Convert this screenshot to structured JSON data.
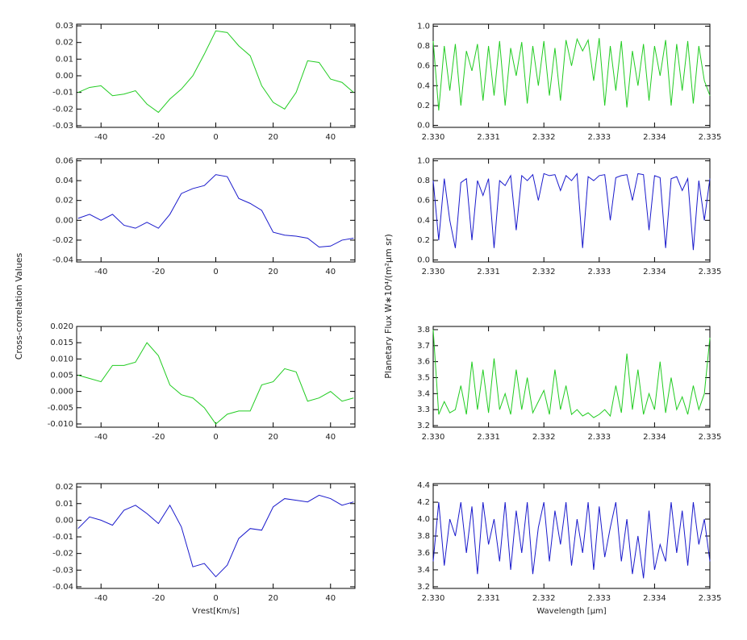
{
  "left_ylabel": "Cross-correlation Values",
  "right_ylabel": "Planetary  Flux  W∗10⁴/(m²μm sr)",
  "chart_data": [
    {
      "type": "line",
      "color": "#22cc22",
      "x": [
        -48,
        -44,
        -40,
        -36,
        -32,
        -28,
        -24,
        -20,
        -16,
        -12,
        -8,
        -4,
        0,
        4,
        8,
        12,
        16,
        20,
        24,
        28,
        32,
        36,
        40,
        44,
        48
      ],
      "values": [
        -0.01,
        -0.007,
        -0.006,
        -0.012,
        -0.011,
        -0.009,
        -0.017,
        -0.022,
        -0.014,
        -0.008,
        0.0,
        0.013,
        0.027,
        0.026,
        0.018,
        0.012,
        -0.006,
        -0.016,
        -0.02,
        -0.01,
        0.009,
        0.008,
        -0.002,
        -0.004,
        -0.01
      ],
      "xlim": [
        -48.5,
        48.5
      ],
      "xticks": [
        -40,
        -20,
        0,
        20,
        40
      ],
      "ylim": [
        -0.031,
        0.031
      ],
      "yticks": [
        {
          "value": -0.03,
          "label": "-0.03"
        },
        {
          "value": -0.02,
          "label": "-0.02"
        },
        {
          "value": -0.01,
          "label": "-0.01"
        },
        {
          "value": 0,
          "label": "0.00"
        },
        {
          "value": 0.01,
          "label": "0.01"
        },
        {
          "value": 0.02,
          "label": "0.02"
        },
        {
          "value": 0.03,
          "label": "0.03"
        }
      ]
    },
    {
      "type": "line",
      "color": "#22cc22",
      "x": [
        2.33,
        2.3301,
        2.3302,
        2.3303,
        2.3304,
        2.3305,
        2.3306,
        2.3307,
        2.3308,
        2.3309,
        2.331,
        2.3311,
        2.3312,
        2.3313,
        2.3314,
        2.3315,
        2.3316,
        2.3317,
        2.3318,
        2.3319,
        2.332,
        2.3321,
        2.3322,
        2.3323,
        2.3324,
        2.3325,
        2.3326,
        2.3327,
        2.3328,
        2.3329,
        2.333,
        2.3331,
        2.3332,
        2.3333,
        2.3334,
        2.3335,
        2.3336,
        2.3337,
        2.3338,
        2.3339,
        2.334,
        2.3341,
        2.3342,
        2.3343,
        2.3344,
        2.3345,
        2.3346,
        2.3347,
        2.3348,
        2.3349,
        2.335
      ],
      "values": [
        0.85,
        0.15,
        0.8,
        0.35,
        0.82,
        0.2,
        0.75,
        0.55,
        0.82,
        0.25,
        0.8,
        0.3,
        0.85,
        0.2,
        0.78,
        0.5,
        0.84,
        0.22,
        0.8,
        0.4,
        0.85,
        0.3,
        0.78,
        0.25,
        0.86,
        0.6,
        0.87,
        0.75,
        0.86,
        0.45,
        0.88,
        0.2,
        0.8,
        0.35,
        0.85,
        0.18,
        0.75,
        0.4,
        0.82,
        0.25,
        0.8,
        0.5,
        0.86,
        0.2,
        0.82,
        0.35,
        0.85,
        0.22,
        0.8,
        0.45,
        0.3
      ],
      "xlim": [
        2.33,
        2.335
      ],
      "xticks": [
        {
          "value": 2.33,
          "label": "2.330"
        },
        {
          "value": 2.331,
          "label": "2.331"
        },
        {
          "value": 2.332,
          "label": "2.332"
        },
        {
          "value": 2.333,
          "label": "2.333"
        },
        {
          "value": 2.334,
          "label": "2.334"
        },
        {
          "value": 2.335,
          "label": "2.335"
        }
      ],
      "ylim": [
        -0.02,
        1.02
      ],
      "yticks": [
        {
          "value": 0,
          "label": "0.0"
        },
        {
          "value": 0.2,
          "label": "0.2"
        },
        {
          "value": 0.4,
          "label": "0.4"
        },
        {
          "value": 0.6,
          "label": "0.6"
        },
        {
          "value": 0.8,
          "label": "0.8"
        },
        {
          "value": 1,
          "label": "1.0"
        }
      ]
    },
    {
      "type": "line",
      "color": "#1a1acc",
      "x": [
        -48,
        -44,
        -40,
        -36,
        -32,
        -28,
        -24,
        -20,
        -16,
        -12,
        -8,
        -4,
        0,
        4,
        8,
        12,
        16,
        20,
        24,
        28,
        32,
        36,
        40,
        44,
        48
      ],
      "values": [
        0.002,
        0.006,
        0.0,
        0.006,
        -0.005,
        -0.008,
        -0.002,
        -0.008,
        0.006,
        0.027,
        0.032,
        0.035,
        0.046,
        0.044,
        0.022,
        0.017,
        0.01,
        -0.012,
        -0.015,
        -0.016,
        -0.018,
        -0.027,
        -0.026,
        -0.02,
        -0.018
      ],
      "xlim": [
        -48.5,
        48.5
      ],
      "xticks": [
        -40,
        -20,
        0,
        20,
        40
      ],
      "ylim": [
        -0.042,
        0.062
      ],
      "yticks": [
        {
          "value": -0.04,
          "label": "-0.04"
        },
        {
          "value": -0.02,
          "label": "-0.02"
        },
        {
          "value": 0,
          "label": "0.00"
        },
        {
          "value": 0.02,
          "label": "0.02"
        },
        {
          "value": 0.04,
          "label": "0.04"
        },
        {
          "value": 0.06,
          "label": "0.06"
        }
      ]
    },
    {
      "type": "line",
      "color": "#1a1acc",
      "x": [
        2.33,
        2.3301,
        2.3302,
        2.3303,
        2.3304,
        2.3305,
        2.3306,
        2.3307,
        2.3308,
        2.3309,
        2.331,
        2.3311,
        2.3312,
        2.3313,
        2.3314,
        2.3315,
        2.3316,
        2.3317,
        2.3318,
        2.3319,
        2.332,
        2.3321,
        2.3322,
        2.3323,
        2.3324,
        2.3325,
        2.3326,
        2.3327,
        2.3328,
        2.3329,
        2.333,
        2.3331,
        2.3332,
        2.3333,
        2.3334,
        2.3335,
        2.3336,
        2.3337,
        2.3338,
        2.3339,
        2.334,
        2.3341,
        2.3342,
        2.3343,
        2.3344,
        2.3345,
        2.3346,
        2.3347,
        2.3348,
        2.3349,
        2.335
      ],
      "values": [
        0.8,
        0.2,
        0.82,
        0.4,
        0.12,
        0.78,
        0.82,
        0.2,
        0.8,
        0.65,
        0.82,
        0.12,
        0.8,
        0.75,
        0.85,
        0.3,
        0.85,
        0.8,
        0.86,
        0.6,
        0.87,
        0.85,
        0.86,
        0.7,
        0.85,
        0.8,
        0.87,
        0.12,
        0.84,
        0.8,
        0.85,
        0.86,
        0.4,
        0.83,
        0.85,
        0.86,
        0.6,
        0.87,
        0.86,
        0.3,
        0.85,
        0.83,
        0.12,
        0.82,
        0.84,
        0.7,
        0.82,
        0.1,
        0.8,
        0.4,
        0.82
      ],
      "xlim": [
        2.33,
        2.335
      ],
      "xticks": [
        {
          "value": 2.33,
          "label": "2.330"
        },
        {
          "value": 2.331,
          "label": "2.331"
        },
        {
          "value": 2.332,
          "label": "2.332"
        },
        {
          "value": 2.333,
          "label": "2.333"
        },
        {
          "value": 2.334,
          "label": "2.334"
        },
        {
          "value": 2.335,
          "label": "2.335"
        }
      ],
      "ylim": [
        -0.02,
        1.02
      ],
      "yticks": [
        {
          "value": 0,
          "label": "0.0"
        },
        {
          "value": 0.2,
          "label": "0.2"
        },
        {
          "value": 0.4,
          "label": "0.4"
        },
        {
          "value": 0.6,
          "label": "0.6"
        },
        {
          "value": 0.8,
          "label": "0.8"
        },
        {
          "value": 1,
          "label": "1.0"
        }
      ]
    },
    {
      "type": "line",
      "color": "#22cc22",
      "x": [
        -48,
        -44,
        -40,
        -36,
        -32,
        -28,
        -24,
        -20,
        -16,
        -12,
        -8,
        -4,
        0,
        4,
        8,
        12,
        16,
        20,
        24,
        28,
        32,
        36,
        40,
        44,
        48
      ],
      "values": [
        0.005,
        0.004,
        0.003,
        0.008,
        0.008,
        0.009,
        0.015,
        0.011,
        0.002,
        -0.001,
        -0.002,
        -0.005,
        -0.01,
        -0.007,
        -0.006,
        -0.006,
        0.002,
        0.003,
        0.007,
        0.006,
        -0.003,
        -0.002,
        0.0,
        -0.003,
        -0.002
      ],
      "xlim": [
        -48.5,
        48.5
      ],
      "xticks": [
        -40,
        -20,
        0,
        20,
        40
      ],
      "ylim": [
        -0.011,
        0.02
      ],
      "yticks": [
        {
          "value": -0.01,
          "label": "-0.010"
        },
        {
          "value": -0.005,
          "label": "-0.005"
        },
        {
          "value": 0,
          "label": "0.000"
        },
        {
          "value": 0.005,
          "label": "0.005"
        },
        {
          "value": 0.01,
          "label": "0.010"
        },
        {
          "value": 0.015,
          "label": "0.015"
        },
        {
          "value": 0.02,
          "label": "0.020"
        }
      ]
    },
    {
      "type": "line",
      "color": "#22cc22",
      "x": [
        2.33,
        2.3301,
        2.3302,
        2.3303,
        2.3304,
        2.3305,
        2.3306,
        2.3307,
        2.3308,
        2.3309,
        2.331,
        2.3311,
        2.3312,
        2.3313,
        2.3314,
        2.3315,
        2.3316,
        2.3317,
        2.3318,
        2.3319,
        2.332,
        2.3321,
        2.3322,
        2.3323,
        2.3324,
        2.3325,
        2.3326,
        2.3327,
        2.3328,
        2.3329,
        2.333,
        2.3331,
        2.3332,
        2.3333,
        2.3334,
        2.3335,
        2.3336,
        2.3337,
        2.3338,
        2.3339,
        2.334,
        2.3341,
        2.3342,
        2.3343,
        2.3344,
        2.3345,
        2.3346,
        2.3347,
        2.3348,
        2.3349,
        2.335
      ],
      "values": [
        3.8,
        3.27,
        3.35,
        3.28,
        3.3,
        3.45,
        3.27,
        3.6,
        3.3,
        3.55,
        3.28,
        3.62,
        3.3,
        3.4,
        3.27,
        3.55,
        3.3,
        3.5,
        3.28,
        3.35,
        3.42,
        3.27,
        3.55,
        3.3,
        3.45,
        3.27,
        3.3,
        3.26,
        3.28,
        3.25,
        3.27,
        3.3,
        3.26,
        3.45,
        3.28,
        3.65,
        3.3,
        3.55,
        3.27,
        3.4,
        3.3,
        3.6,
        3.28,
        3.5,
        3.3,
        3.38,
        3.27,
        3.45,
        3.3,
        3.4,
        3.75
      ],
      "xlim": [
        2.33,
        2.335
      ],
      "xticks": [
        {
          "value": 2.33,
          "label": "2.330"
        },
        {
          "value": 2.331,
          "label": "2.331"
        },
        {
          "value": 2.332,
          "label": "2.332"
        },
        {
          "value": 2.333,
          "label": "2.333"
        },
        {
          "value": 2.334,
          "label": "2.334"
        },
        {
          "value": 2.335,
          "label": "2.335"
        }
      ],
      "ylim": [
        3.19,
        3.82
      ],
      "yticks": [
        3.2,
        3.3,
        3.4,
        3.5,
        3.6,
        3.7,
        3.8
      ]
    },
    {
      "type": "line",
      "color": "#1a1acc",
      "xlabel": "Vrest[Km/s]",
      "x": [
        -48,
        -44,
        -40,
        -36,
        -32,
        -28,
        -24,
        -20,
        -16,
        -12,
        -8,
        -4,
        0,
        4,
        8,
        12,
        16,
        20,
        24,
        28,
        32,
        36,
        40,
        44,
        48
      ],
      "values": [
        -0.005,
        0.002,
        0.0,
        -0.003,
        0.006,
        0.009,
        0.004,
        -0.002,
        0.009,
        -0.004,
        -0.028,
        -0.026,
        -0.034,
        -0.027,
        -0.011,
        -0.005,
        -0.006,
        0.008,
        0.013,
        0.012,
        0.011,
        0.015,
        0.013,
        0.009,
        0.011
      ],
      "xlim": [
        -48.5,
        48.5
      ],
      "xticks": [
        -40,
        -20,
        0,
        20,
        40
      ],
      "ylim": [
        -0.041,
        0.022
      ],
      "yticks": [
        {
          "value": -0.04,
          "label": "-0.04"
        },
        {
          "value": -0.03,
          "label": "-0.03"
        },
        {
          "value": -0.02,
          "label": "-0.02"
        },
        {
          "value": -0.01,
          "label": "-0.01"
        },
        {
          "value": 0,
          "label": "0.00"
        },
        {
          "value": 0.01,
          "label": "0.01"
        },
        {
          "value": 0.02,
          "label": "0.02"
        }
      ]
    },
    {
      "type": "line",
      "color": "#1a1acc",
      "xlabel": "Wavelength [μm]",
      "x": [
        2.33,
        2.3301,
        2.3302,
        2.3303,
        2.3304,
        2.3305,
        2.3306,
        2.3307,
        2.3308,
        2.3309,
        2.331,
        2.3311,
        2.3312,
        2.3313,
        2.3314,
        2.3315,
        2.3316,
        2.3317,
        2.3318,
        2.3319,
        2.332,
        2.3321,
        2.3322,
        2.3323,
        2.3324,
        2.3325,
        2.3326,
        2.3327,
        2.3328,
        2.3329,
        2.333,
        2.3331,
        2.3332,
        2.3333,
        2.3334,
        2.3335,
        2.3336,
        2.3337,
        2.3338,
        2.3339,
        2.334,
        2.3341,
        2.3342,
        2.3343,
        2.3344,
        2.3345,
        2.3346,
        2.3347,
        2.3348,
        2.3349,
        2.335
      ],
      "values": [
        3.5,
        4.2,
        3.45,
        4.0,
        3.8,
        4.2,
        3.6,
        4.15,
        3.35,
        4.2,
        3.7,
        4.0,
        3.5,
        4.2,
        3.4,
        4.1,
        3.6,
        4.2,
        3.35,
        3.9,
        4.2,
        3.5,
        4.1,
        3.7,
        4.2,
        3.45,
        4.0,
        3.6,
        4.2,
        3.4,
        4.15,
        3.55,
        3.9,
        4.2,
        3.5,
        4.0,
        3.35,
        3.8,
        3.3,
        4.1,
        3.4,
        3.7,
        3.5,
        4.2,
        3.6,
        4.1,
        3.45,
        4.2,
        3.7,
        4.0,
        3.5
      ],
      "xlim": [
        2.33,
        2.335
      ],
      "xticks": [
        {
          "value": 2.33,
          "label": "2.330"
        },
        {
          "value": 2.331,
          "label": "2.331"
        },
        {
          "value": 2.332,
          "label": "2.332"
        },
        {
          "value": 2.333,
          "label": "2.333"
        },
        {
          "value": 2.334,
          "label": "2.334"
        },
        {
          "value": 2.335,
          "label": "2.335"
        }
      ],
      "ylim": [
        3.18,
        4.42
      ],
      "yticks": [
        {
          "value": 3.2,
          "label": "3.2"
        },
        {
          "value": 3.4,
          "label": "3.4"
        },
        {
          "value": 3.6,
          "label": "3.6"
        },
        {
          "value": 3.8,
          "label": "3.8"
        },
        {
          "value": 4,
          "label": "4.0"
        },
        {
          "value": 4.2,
          "label": "4.2"
        },
        {
          "value": 4.4,
          "label": "4.4"
        }
      ]
    }
  ]
}
